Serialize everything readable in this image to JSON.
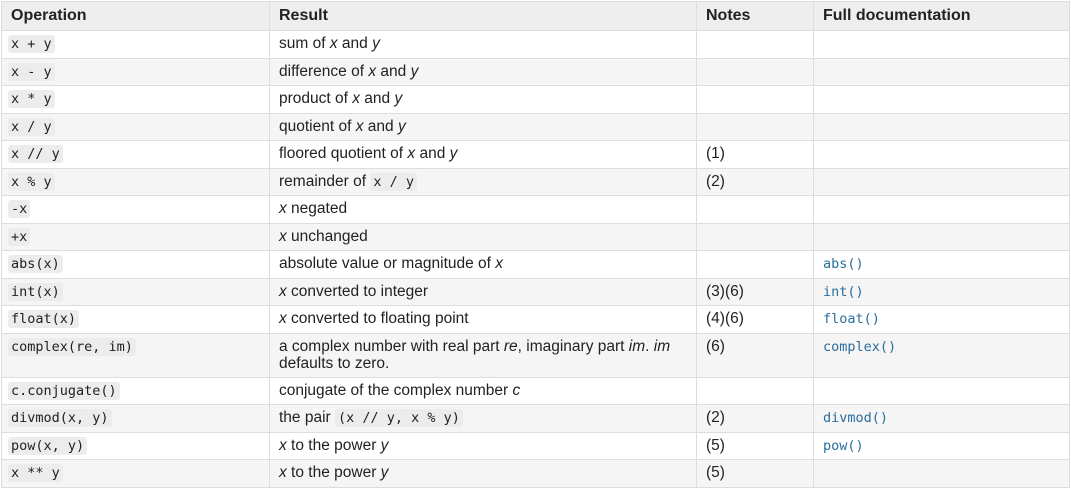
{
  "headers": [
    "Operation",
    "Result",
    "Notes",
    "Full documentation"
  ],
  "rows": [
    {
      "op": "x + y",
      "result": [
        {
          "t": "sum of "
        },
        {
          "t": "x",
          "i": true
        },
        {
          "t": " and "
        },
        {
          "t": "y",
          "i": true
        }
      ],
      "notes": "",
      "doc": ""
    },
    {
      "op": "x - y",
      "result": [
        {
          "t": "difference of "
        },
        {
          "t": "x",
          "i": true
        },
        {
          "t": " and "
        },
        {
          "t": "y",
          "i": true
        }
      ],
      "notes": "",
      "doc": ""
    },
    {
      "op": "x * y",
      "result": [
        {
          "t": "product of "
        },
        {
          "t": "x",
          "i": true
        },
        {
          "t": " and "
        },
        {
          "t": "y",
          "i": true
        }
      ],
      "notes": "",
      "doc": ""
    },
    {
      "op": "x / y",
      "result": [
        {
          "t": "quotient of "
        },
        {
          "t": "x",
          "i": true
        },
        {
          "t": " and "
        },
        {
          "t": "y",
          "i": true
        }
      ],
      "notes": "",
      "doc": ""
    },
    {
      "op": "x // y",
      "result": [
        {
          "t": "floored quotient of "
        },
        {
          "t": "x",
          "i": true
        },
        {
          "t": " and "
        },
        {
          "t": "y",
          "i": true
        }
      ],
      "notes": "(1)",
      "doc": ""
    },
    {
      "op": "x % y",
      "result": [
        {
          "t": "remainder of "
        },
        {
          "t": "x / y",
          "c": true
        }
      ],
      "notes": "(2)",
      "doc": ""
    },
    {
      "op": "-x",
      "result": [
        {
          "t": "x",
          "i": true
        },
        {
          "t": " negated"
        }
      ],
      "notes": "",
      "doc": ""
    },
    {
      "op": "+x",
      "result": [
        {
          "t": "x",
          "i": true
        },
        {
          "t": " unchanged"
        }
      ],
      "notes": "",
      "doc": ""
    },
    {
      "op": "abs(x)",
      "result": [
        {
          "t": "absolute value or magnitude of "
        },
        {
          "t": "x",
          "i": true
        }
      ],
      "notes": "",
      "doc": "abs()"
    },
    {
      "op": "int(x)",
      "result": [
        {
          "t": "x",
          "i": true
        },
        {
          "t": " converted to integer"
        }
      ],
      "notes": "(3)(6)",
      "doc": "int()"
    },
    {
      "op": "float(x)",
      "result": [
        {
          "t": "x",
          "i": true
        },
        {
          "t": " converted to floating point"
        }
      ],
      "notes": "(4)(6)",
      "doc": "float()"
    },
    {
      "op": "complex(re, im)",
      "result": [
        {
          "t": "a complex number with real part "
        },
        {
          "t": "re",
          "i": true
        },
        {
          "t": ", imaginary part "
        },
        {
          "t": "im",
          "i": true
        },
        {
          "t": ". "
        },
        {
          "t": "im",
          "i": true
        },
        {
          "t": " defaults to zero."
        }
      ],
      "notes": "(6)",
      "doc": "complex()"
    },
    {
      "op": "c.conjugate()",
      "result": [
        {
          "t": "conjugate of the complex number "
        },
        {
          "t": "c",
          "i": true
        }
      ],
      "notes": "",
      "doc": ""
    },
    {
      "op": "divmod(x, y)",
      "result": [
        {
          "t": "the pair "
        },
        {
          "t": "(x // y, x % y)",
          "c": true
        }
      ],
      "notes": "(2)",
      "doc": "divmod()"
    },
    {
      "op": "pow(x, y)",
      "result": [
        {
          "t": "x",
          "i": true
        },
        {
          "t": " to the power "
        },
        {
          "t": "y",
          "i": true
        }
      ],
      "notes": "(5)",
      "doc": "pow()"
    },
    {
      "op": "x ** y",
      "result": [
        {
          "t": "x",
          "i": true
        },
        {
          "t": " to the power "
        },
        {
          "t": "y",
          "i": true
        }
      ],
      "notes": "(5)",
      "doc": ""
    }
  ]
}
